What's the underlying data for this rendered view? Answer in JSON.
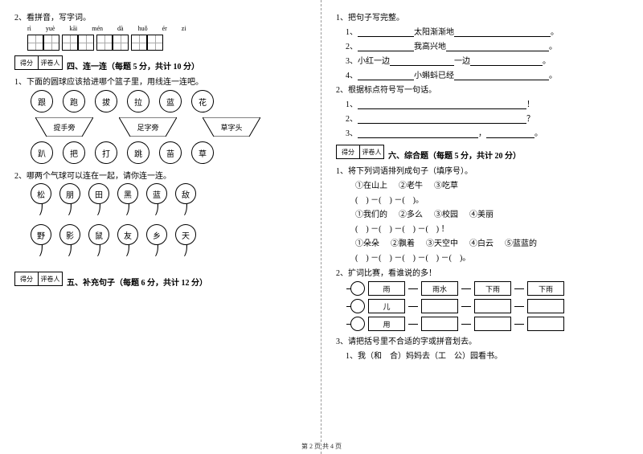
{
  "left": {
    "q2_label": "2、看拼音，写字词。",
    "pinyin": [
      "rì",
      "yuè",
      "kāi",
      "mén",
      "dà",
      "huǒ",
      "ér",
      "zi"
    ],
    "score": {
      "c1": "得分",
      "c2": "评卷人"
    },
    "sec4_title": "四、连一连（每题 5 分，共计 10 分）",
    "sec4_q1": "1、下面的圆球应该拾进哪个篮子里，用线连一连吧。",
    "circles1": [
      "跟",
      "跑",
      "拔",
      "拉",
      "蓝",
      "花"
    ],
    "traps": [
      "提手旁",
      "足字旁",
      "草字头"
    ],
    "circles2": [
      "趴",
      "把",
      "打",
      "跳",
      "苗",
      "草"
    ],
    "sec4_q2": "2、哪两个气球可以连在一起，请你连一连。",
    "balloons1": [
      "松",
      "朋",
      "田",
      "黑",
      "蓝",
      "敌"
    ],
    "balloons2": [
      "野",
      "影",
      "鼠",
      "友",
      "乡",
      "天"
    ],
    "sec5_title": "五、补充句子（每题 6 分，共计 12 分）"
  },
  "right": {
    "q1_label": "1、把句子写完整。",
    "q1_items": [
      {
        "pre": "1、",
        "blank1": 70,
        "mid": "太阳渐渐地",
        "blank2": 120,
        "end": "。"
      },
      {
        "pre": "2、",
        "blank1": 70,
        "mid": "我高兴地",
        "blank2": 128,
        "end": "。"
      },
      {
        "pre": "3、小红一边",
        "blank1": 80,
        "mid": "一边",
        "blank2": 90,
        "end": "。"
      },
      {
        "pre": "4、",
        "blank1": 70,
        "mid": "小蝌蚪已经",
        "blank2": 118,
        "end": "。"
      }
    ],
    "q2_label": "2、根据标点符号写一句话。",
    "q2_items": [
      {
        "pre": "1、",
        "blank": 210,
        "end": "！"
      },
      {
        "pre": "2、",
        "blank": 210,
        "end": "？"
      },
      {
        "pre": "3、",
        "blank": 150,
        "mid": "，",
        "blank2": 60,
        "end": "。"
      }
    ],
    "score": {
      "c1": "得分",
      "c2": "评卷人"
    },
    "sec6_title": "六、综合题（每题 5 分，共计 20 分）",
    "sec6_q1": "1、将下列词语排列成句子（填序号）。",
    "sets": [
      {
        "opts": [
          "①在山上",
          "②老牛",
          "③吃草"
        ],
        "pattern": "(　) －(　) －(　)。"
      },
      {
        "opts": [
          "①我们的",
          "②多么",
          "③校园",
          "④美丽"
        ],
        "pattern": "(　) －(　) －(　) －(　) ！"
      },
      {
        "opts": [
          "①朵朵",
          "②飘着",
          "③天空中",
          "④白云",
          "⑤蓝蓝的"
        ],
        "pattern": "(　) －(　) －(　) －(　) －(　)。"
      }
    ],
    "sec6_q2": "2、扩词比赛，看谁说的多！",
    "ext": [
      {
        "char": "雨",
        "words": [
          "雨水",
          "下雨",
          "下雨"
        ]
      },
      {
        "char": "儿",
        "words": [
          "",
          "",
          ""
        ]
      },
      {
        "char": "用",
        "words": [
          "",
          "",
          ""
        ]
      }
    ],
    "sec6_q3": "3、请把括号里不合适的字或拼音划去。",
    "sec6_q3_line": "1、我（和　合）妈妈去（工　公）园看书。"
  },
  "footer": "第 2 页 共 4 页"
}
